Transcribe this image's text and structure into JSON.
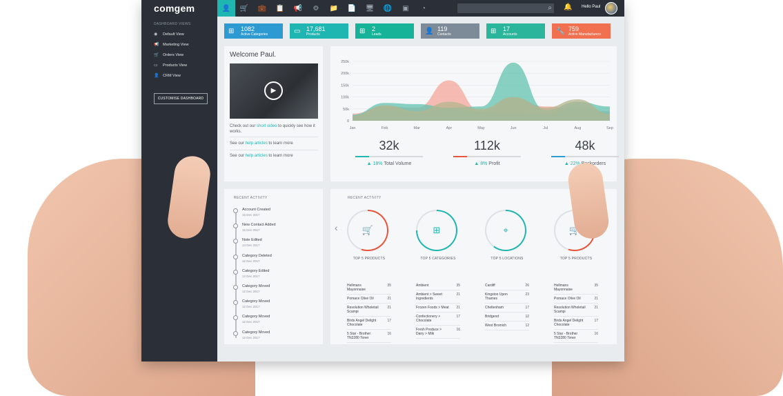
{
  "app": {
    "logo": "comgem",
    "greeting": "Hello Paul"
  },
  "colors": {
    "teal": "#1fb5b1",
    "red": "#e9533b",
    "blue": "#2d9bd2",
    "gray": "#7d8b99",
    "coral": "#f0704f"
  },
  "nav_icons": [
    "user-icon",
    "cart-icon",
    "briefcase-icon",
    "clipboard-icon",
    "megaphone-icon",
    "gear-icon",
    "folder-icon",
    "document-icon",
    "monitor-icon",
    "globe-icon",
    "image-icon",
    "pie-chart-icon"
  ],
  "sidebar": {
    "title": "DASHBOARD VIEWS",
    "items": [
      {
        "label": "Default View",
        "icon": "eye-icon"
      },
      {
        "label": "Marketing View",
        "icon": "megaphone-icon"
      },
      {
        "label": "Orders View",
        "icon": "cart-icon"
      },
      {
        "label": "Products View",
        "icon": "box-icon"
      },
      {
        "label": "CRM View",
        "icon": "user-icon"
      }
    ],
    "customise_button": "CUSTOMISE DASHBOARD"
  },
  "stats": [
    {
      "value": "1082",
      "label": "Active Categories",
      "color": "#2d9bd2",
      "icon": "hierarchy-icon"
    },
    {
      "value": "17,681",
      "label": "Products",
      "color": "#1fb5b1",
      "icon": "box-icon"
    },
    {
      "value": "2",
      "label": "Leads",
      "color": "#16b398",
      "icon": "hierarchy-icon"
    },
    {
      "value": "119",
      "label": "Contacts",
      "color": "#7d8b99",
      "icon": "user-icon"
    },
    {
      "value": "17",
      "label": "Accounts",
      "color": "#2bb59a",
      "icon": "hierarchy-icon"
    },
    {
      "value": "759",
      "label": "Active Manufacturers",
      "color": "#f0704f",
      "icon": "wrench-icon"
    }
  ],
  "welcome": {
    "title": "Welcome Paul.",
    "video_pre": "Check out our ",
    "video_link": "short video",
    "video_post": " to quickly see how it works.",
    "help1_pre": "See our ",
    "help1_link": "help articles",
    "help1_post": " to learn more",
    "help2_pre": "See our ",
    "help2_link": "help articles",
    "help2_post": " to learn more"
  },
  "chart_data": {
    "type": "area",
    "categories": [
      "Jan",
      "Feb",
      "Mar",
      "Apr",
      "May",
      "Jun",
      "Jul",
      "Aug",
      "Sep"
    ],
    "ylim": [
      0,
      250000
    ],
    "yticks": [
      "0",
      "50k",
      "100k",
      "150k",
      "200k",
      "250k"
    ],
    "series": [
      {
        "color": "#f4a79b",
        "values": [
          30000,
          60000,
          55000,
          170000,
          40000,
          95000,
          60000,
          50000,
          40000
        ]
      },
      {
        "color": "#9ccfe8",
        "values": [
          15000,
          45000,
          30000,
          50000,
          35000,
          30000,
          25000,
          70000,
          35000
        ]
      },
      {
        "color": "#62c3b0",
        "values": [
          25000,
          75000,
          70000,
          55000,
          60000,
          245000,
          45000,
          80000,
          60000
        ]
      },
      {
        "color": "#b4b48e",
        "values": [
          20000,
          65000,
          40000,
          80000,
          50000,
          100000,
          55000,
          90000,
          30000
        ]
      }
    ]
  },
  "kpis": [
    {
      "value": "32k",
      "pct": "18%",
      "label": "Total Volume",
      "color": "#1fb5b1"
    },
    {
      "value": "112k",
      "pct": "8%",
      "label": "Profit",
      "color": "#e9533b"
    },
    {
      "value": "48k",
      "pct": "22%",
      "label": "Backorders",
      "color": "#2d9bd2"
    }
  ],
  "activity": {
    "title": "RECENT ACTIVITY",
    "items": [
      {
        "label": "Account Created",
        "date": "15 Dec 2017"
      },
      {
        "label": "New Contact Added",
        "date": "15 Dec 2017"
      },
      {
        "label": "Note Edited",
        "date": "13 Dec 2017"
      },
      {
        "label": "Category Deleted",
        "date": "12 Dec 2017"
      },
      {
        "label": "Category Edited",
        "date": "12 Dec 2017"
      },
      {
        "label": "Category Moved",
        "date": "12 Dec 2017"
      },
      {
        "label": "Category Moved",
        "date": "12 Dec 2017"
      },
      {
        "label": "Category Moved",
        "date": "12 Dec 2017"
      },
      {
        "label": "Category Moved",
        "date": "12 Dec 2017"
      }
    ]
  },
  "tops": {
    "title": "RECENT ACTIVITY",
    "columns": [
      {
        "title": "TOP 5 PRODUCTS",
        "icon": "cart-icon",
        "color": "#e9533b",
        "progress": 0.55,
        "rows": [
          [
            "Hellmans Mayonnaise",
            "35"
          ],
          [
            "Pomace Olive Oil",
            "21"
          ],
          [
            "Resolution Wholetail Scampi",
            "21"
          ],
          [
            "Birds Angel Delight Chocolate",
            "17"
          ],
          [
            "5 Star - Brother TN3280 Toner",
            "16"
          ]
        ]
      },
      {
        "title": "TOP 5 CATEGORIES",
        "icon": "hierarchy-icon",
        "color": "#1fb5b1",
        "progress": 0.75,
        "rows": [
          [
            "Ambient",
            "35"
          ],
          [
            "Ambient > Sweet Ingredients",
            "21"
          ],
          [
            "Frozen Foods > Meat",
            "21"
          ],
          [
            "Confectionery > Chocolate",
            "17"
          ],
          [
            "Fresh Produce > Dairy > Milk",
            "16"
          ]
        ]
      },
      {
        "title": "TOP 5 LOCATIONS",
        "icon": "pin-icon",
        "color": "#1fb5b1",
        "progress": 0.6,
        "rows": [
          [
            "Cardiff",
            "26"
          ],
          [
            "Kingston Upon Thames",
            "23"
          ],
          [
            "Cheltenham",
            "17"
          ],
          [
            "Bridgend",
            "12"
          ],
          [
            "West Bromich",
            "12"
          ]
        ]
      },
      {
        "title": "TOP 5 PRODUCTS",
        "icon": "cart-icon",
        "color": "#e9533b",
        "progress": 0.55,
        "rows": [
          [
            "Hellmans Mayonnaise",
            "35"
          ],
          [
            "Pomace Olive Oil",
            "21"
          ],
          [
            "Resolution Wholetail Scampi",
            "21"
          ],
          [
            "Birds Angel Delight Chocolate",
            "17"
          ],
          [
            "5 Star - Brother TN3280 Toner",
            "16"
          ]
        ]
      }
    ]
  }
}
